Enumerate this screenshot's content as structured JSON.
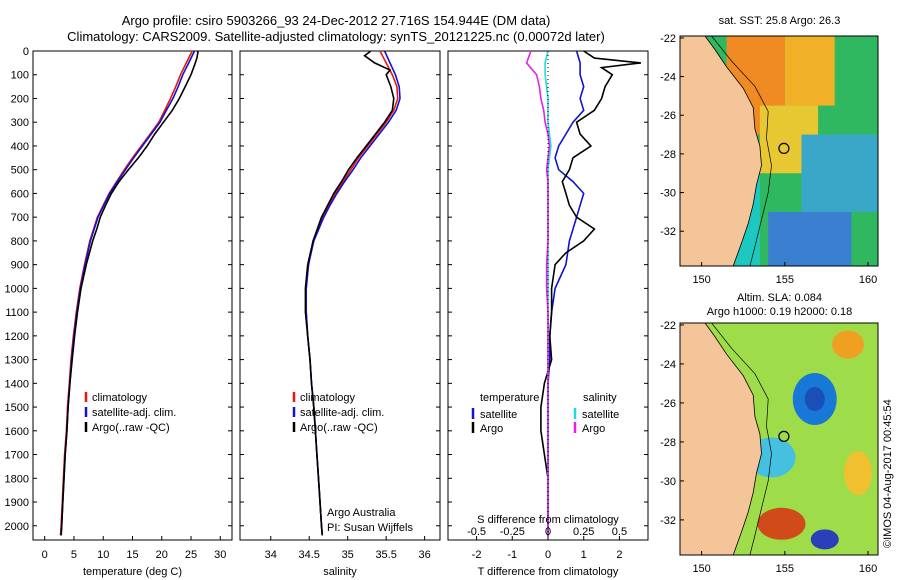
{
  "titles": {
    "line1": "Argo profile: csiro 5903266_93 24-Dec-2012 27.716S 154.944E (DM data)",
    "line2": "Climatology: CARS2009. Satellite-adjusted climatology: synTS_20121225.nc (0.00072d later)"
  },
  "colors": {
    "climatology": "#e8170f",
    "satellite": "#1212d2",
    "argo": "#000000",
    "salinity_argo": "#e620e6",
    "salinity_sat": "#20d8e6",
    "land": "#f5c59a"
  },
  "y_ticks": [
    "0",
    "100",
    "200",
    "300",
    "400",
    "500",
    "600",
    "700",
    "800",
    "900",
    "1000",
    "1100",
    "1200",
    "1300",
    "1400",
    "1500",
    "1600",
    "1700",
    "1800",
    "1900",
    "2000"
  ],
  "legend_profiles": {
    "climatology": "climatology",
    "satellite": "satellite-adj. clim.",
    "argo": "Argo(..raw -QC)"
  },
  "legend_diff": {
    "temp_header": "temperature",
    "sal_header": "salinity",
    "satellite": "satellite",
    "argo": "Argo"
  },
  "credit": {
    "line1": "Argo Australia",
    "line2": "PI: Susan Wijffels"
  },
  "chart_data": [
    {
      "type": "line",
      "xlabel": "temperature (deg C)",
      "ylabel": "",
      "xlim": [
        -2,
        32
      ],
      "ylim": [
        2060,
        0
      ],
      "x_ticks": [
        0,
        5,
        10,
        15,
        20,
        25,
        30
      ],
      "x_tick_labels": [
        "0",
        "5",
        "10",
        "15",
        "20",
        "25",
        "30"
      ],
      "series": [
        {
          "name": "climatology",
          "depth": [
            0,
            50,
            100,
            150,
            200,
            250,
            300,
            350,
            400,
            450,
            500,
            550,
            600,
            650,
            700,
            800,
            900,
            1000,
            1100,
            1200,
            1300,
            1400,
            1500,
            1600,
            1700,
            1800,
            1900,
            2000,
            2040
          ],
          "values": [
            25.2,
            24.2,
            23.2,
            22.4,
            21.5,
            20.5,
            19.5,
            18.0,
            16.5,
            15.0,
            13.6,
            12.3,
            11.0,
            10.0,
            9.0,
            7.7,
            6.8,
            6.0,
            5.4,
            4.9,
            4.5,
            4.2,
            3.9,
            3.7,
            3.4,
            3.2,
            3.0,
            2.8,
            2.7
          ]
        },
        {
          "name": "satellite-adj. clim.",
          "depth": [
            0,
            50,
            100,
            150,
            200,
            250,
            300,
            350,
            400,
            450,
            500,
            550,
            600,
            650,
            700,
            800,
            900,
            1000,
            1100,
            1200,
            1300,
            1400,
            1500,
            1600,
            1700,
            1800,
            1900,
            2000,
            2040
          ],
          "values": [
            25.6,
            24.6,
            23.6,
            22.8,
            21.9,
            20.8,
            19.7,
            18.2,
            16.7,
            15.2,
            13.8,
            12.4,
            11.1,
            10.1,
            9.1,
            7.8,
            6.9,
            6.1,
            5.5,
            5.0,
            4.6,
            4.3,
            4.0,
            3.8,
            3.5,
            3.3,
            3.1,
            2.9,
            2.8
          ]
        },
        {
          "name": "Argo(..raw -QC)",
          "depth": [
            0,
            30,
            60,
            100,
            150,
            200,
            250,
            300,
            350,
            400,
            450,
            500,
            550,
            600,
            650,
            700,
            750,
            800,
            900,
            1000,
            1100,
            1200,
            1300,
            1400,
            1500,
            1600,
            1700,
            1800,
            1900,
            2000,
            2040
          ],
          "values": [
            26.2,
            26.0,
            25.6,
            25.0,
            24.0,
            23.0,
            21.8,
            20.3,
            18.8,
            17.5,
            16.0,
            14.3,
            12.7,
            11.4,
            10.4,
            9.5,
            8.9,
            8.2,
            7.1,
            6.2,
            5.6,
            5.1,
            4.7,
            4.3,
            4.0,
            3.8,
            3.5,
            3.3,
            3.1,
            2.9,
            2.8
          ]
        }
      ]
    },
    {
      "type": "line",
      "xlabel": "salinity",
      "ylabel": "",
      "xlim": [
        33.6,
        36.2
      ],
      "ylim": [
        2060,
        0
      ],
      "x_ticks": [
        34,
        34.5,
        35,
        35.5,
        36
      ],
      "x_tick_labels": [
        "34",
        "34.5",
        "35",
        "35.5",
        "36"
      ],
      "series": [
        {
          "name": "climatology",
          "depth": [
            0,
            50,
            100,
            150,
            200,
            250,
            300,
            350,
            400,
            450,
            500,
            550,
            600,
            650,
            700,
            800,
            900,
            1000,
            1100,
            1200,
            1300,
            1400,
            1500,
            1600,
            1700,
            1800,
            1900,
            2000,
            2040
          ],
          "values": [
            35.42,
            35.5,
            35.58,
            35.64,
            35.65,
            35.6,
            35.5,
            35.38,
            35.26,
            35.14,
            35.04,
            34.94,
            34.84,
            34.76,
            34.68,
            34.55,
            34.49,
            34.46,
            34.46,
            34.48,
            34.51,
            34.53,
            34.56,
            34.58,
            34.6,
            34.62,
            34.64,
            34.66,
            34.67
          ]
        },
        {
          "name": "satellite-adj. clim.",
          "depth": [
            0,
            50,
            100,
            150,
            200,
            250,
            300,
            350,
            400,
            450,
            500,
            550,
            600,
            650,
            700,
            800,
            900,
            1000,
            1100,
            1200,
            1300,
            1400,
            1500,
            1600,
            1700,
            1800,
            1900,
            2000,
            2040
          ],
          "values": [
            35.48,
            35.55,
            35.62,
            35.67,
            35.68,
            35.63,
            35.53,
            35.41,
            35.29,
            35.17,
            35.07,
            34.96,
            34.86,
            34.77,
            34.69,
            34.56,
            34.49,
            34.46,
            34.46,
            34.48,
            34.51,
            34.53,
            34.56,
            34.58,
            34.6,
            34.62,
            34.64,
            34.66,
            34.67
          ]
        },
        {
          "name": "Argo(..raw -QC)",
          "depth": [
            0,
            20,
            50,
            80,
            100,
            150,
            200,
            250,
            300,
            350,
            400,
            450,
            500,
            550,
            600,
            650,
            700,
            800,
            900,
            1000,
            1100,
            1200,
            1300,
            1400,
            1500,
            1600,
            1700,
            1800,
            1900,
            2000,
            2040
          ],
          "values": [
            35.3,
            35.22,
            35.35,
            35.55,
            35.5,
            35.56,
            35.6,
            35.58,
            35.48,
            35.36,
            35.24,
            35.12,
            35.01,
            34.92,
            34.82,
            34.74,
            34.66,
            34.55,
            34.48,
            34.45,
            34.45,
            34.48,
            34.51,
            34.53,
            34.56,
            34.58,
            34.6,
            34.62,
            34.64,
            34.66,
            34.67
          ]
        }
      ]
    },
    {
      "type": "line",
      "xlabel": "T difference from climatology",
      "secondary_xlabel": "S difference from climatology",
      "ylabel": "",
      "xlim": [
        -2.8,
        2.8
      ],
      "ylim": [
        2060,
        0
      ],
      "x_ticks": [
        -2,
        -1,
        0,
        1,
        2
      ],
      "x_tick_labels": [
        "-2",
        "-1",
        "0",
        "1",
        "2"
      ],
      "s_ticks": [
        -0.5,
        -0.25,
        0,
        0.25,
        0.5
      ],
      "s_tick_labels": [
        "-0.5",
        "-0.25",
        "0",
        "0.25",
        "0.5"
      ],
      "series": [
        {
          "name": "temperature satellite",
          "depth": [
            0,
            50,
            100,
            150,
            200,
            250,
            300,
            350,
            400,
            450,
            500,
            550,
            600,
            650,
            700,
            800,
            900,
            1000,
            1100,
            1200,
            1300,
            1400,
            1600,
            1800,
            2000,
            2040
          ],
          "values": [
            0.8,
            0.9,
            0.9,
            1.0,
            0.9,
            1.0,
            0.7,
            0.5,
            0.3,
            0.2,
            0.3,
            0.7,
            1.0,
            0.9,
            0.8,
            0.6,
            0.5,
            0.2,
            0.1,
            0.05,
            0.05,
            0.0,
            0.0,
            0.0,
            0.0,
            0.0
          ]
        },
        {
          "name": "temperature Argo",
          "depth": [
            0,
            30,
            50,
            70,
            100,
            150,
            200,
            250,
            300,
            350,
            400,
            450,
            500,
            550,
            600,
            650,
            700,
            750,
            800,
            850,
            900,
            1000,
            1100,
            1200,
            1300,
            1400,
            1500,
            1600,
            1700,
            1800,
            1900,
            2000,
            2040
          ],
          "values": [
            1.0,
            1.3,
            2.6,
            1.5,
            1.8,
            1.6,
            1.5,
            1.3,
            0.8,
            0.9,
            1.2,
            0.7,
            0.6,
            0.4,
            0.5,
            0.6,
            0.8,
            1.3,
            1.0,
            0.5,
            0.2,
            0.1,
            0.1,
            0.05,
            0.1,
            -0.1,
            -0.2,
            -0.2,
            -0.1,
            0.0,
            0.0,
            0.0,
            0.0
          ]
        },
        {
          "name": "salinity satellite",
          "depth": [
            0,
            50,
            100,
            200,
            300,
            400,
            500,
            600,
            700,
            800,
            1000,
            1200,
            1500,
            2000,
            2040
          ],
          "values": [
            0.0,
            -0.02,
            -0.02,
            0.0,
            0.0,
            0.02,
            0.0,
            0.0,
            0.0,
            0.0,
            0.0,
            0.0,
            0.0,
            0.0,
            0.0
          ]
        },
        {
          "name": "salinity Argo",
          "depth": [
            0,
            50,
            100,
            150,
            200,
            250,
            300,
            350,
            400,
            450,
            500,
            550,
            600,
            700,
            800,
            900,
            1000,
            1100,
            1200,
            1400,
            1600,
            1800,
            2000,
            2040
          ],
          "values": [
            -0.12,
            -0.15,
            -0.08,
            -0.06,
            -0.05,
            -0.03,
            -0.02,
            0.0,
            0.01,
            0.0,
            -0.01,
            0.0,
            0.0,
            0.0,
            0.0,
            -0.01,
            -0.01,
            0.0,
            0.0,
            0.0,
            0.0,
            0.0,
            0.0,
            0.0
          ]
        }
      ]
    },
    {
      "type": "heatmap",
      "title": "sat. SST: 25.8  Argo: 26.3",
      "x_ticks": [
        150,
        155,
        160
      ],
      "x_tick_labels": [
        "150",
        "155",
        "160"
      ],
      "y_ticks": [
        -22,
        -24,
        -26,
        -28,
        -30,
        -32
      ],
      "y_tick_labels": [
        "-22",
        "-24",
        "-26",
        "-28",
        "-30",
        "-32"
      ],
      "lon_range": [
        148.7,
        160.6
      ],
      "lat_range": [
        -33.8,
        -21.9
      ],
      "profile_marker": {
        "lon": 154.944,
        "lat": -27.716
      }
    },
    {
      "type": "heatmap",
      "title_line1": "Altim. SLA: 0.084",
      "title_line2": "Argo h1000: 0.19 h2000: 0.18",
      "x_ticks": [
        150,
        155,
        160
      ],
      "x_tick_labels": [
        "150",
        "155",
        "160"
      ],
      "y_ticks": [
        -22,
        -24,
        -26,
        -28,
        -30,
        -32
      ],
      "y_tick_labels": [
        "-22",
        "-24",
        "-26",
        "-28",
        "-30",
        "-32"
      ],
      "lon_range": [
        148.7,
        160.6
      ],
      "lat_range": [
        -33.8,
        -21.9
      ],
      "profile_marker": {
        "lon": 154.944,
        "lat": -27.716
      }
    }
  ],
  "stamp": "©IMOS 04-Aug-2017 00:45:54"
}
